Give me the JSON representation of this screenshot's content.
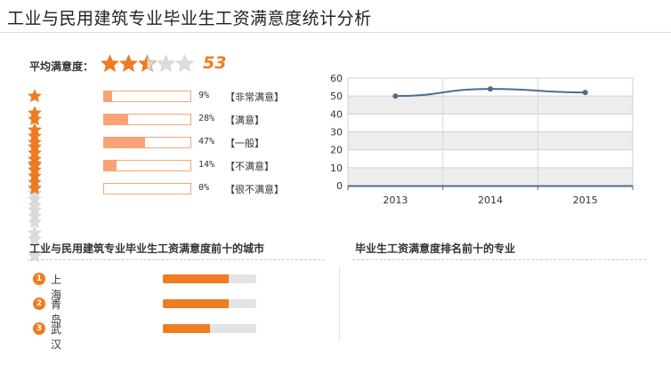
{
  "page_title": "工业与民用建筑专业毕业生工资满意度统计分析",
  "average": {
    "label": "平均满意度：",
    "stars": 2.5,
    "value": "53"
  },
  "ratings": [
    {
      "stars": 5,
      "percent": 9,
      "percent_text": "9%",
      "level_text": "【非常满意】"
    },
    {
      "stars": 4,
      "percent": 28,
      "percent_text": "28%",
      "level_text": "【满意】"
    },
    {
      "stars": 3,
      "percent": 47,
      "percent_text": "47%",
      "level_text": "【一般】"
    },
    {
      "stars": 2,
      "percent": 14,
      "percent_text": "14%",
      "level_text": "【不满意】"
    },
    {
      "stars": 1,
      "percent": 0,
      "percent_text": "0%",
      "level_text": "【很不满意】"
    }
  ],
  "colors": {
    "star_on": "#f07c22",
    "star_off": "#dcdcdc",
    "bar_fill": "#f9a377",
    "line": "#4e6b93",
    "accent": "#f07c22"
  },
  "chart_data": {
    "type": "line",
    "x": [
      "2013",
      "2014",
      "2015"
    ],
    "series": [
      {
        "values": [
          50,
          54,
          52
        ]
      }
    ],
    "yticks": [
      0,
      10,
      20,
      30,
      40,
      50,
      60
    ],
    "ylim": [
      0,
      60
    ],
    "grid": "alternating horizontal bands"
  },
  "cities": {
    "heading": "工业与民用建筑专业毕业生工资满意度前十的城市",
    "items": [
      {
        "rank": "1",
        "name": "上海",
        "value": 0.7
      },
      {
        "rank": "2",
        "name": "青岛",
        "value": 0.7
      },
      {
        "rank": "3",
        "name": "武汉",
        "value": 0.5
      }
    ]
  },
  "majors": {
    "heading": "毕业生工资满意度排名前十的专业"
  }
}
